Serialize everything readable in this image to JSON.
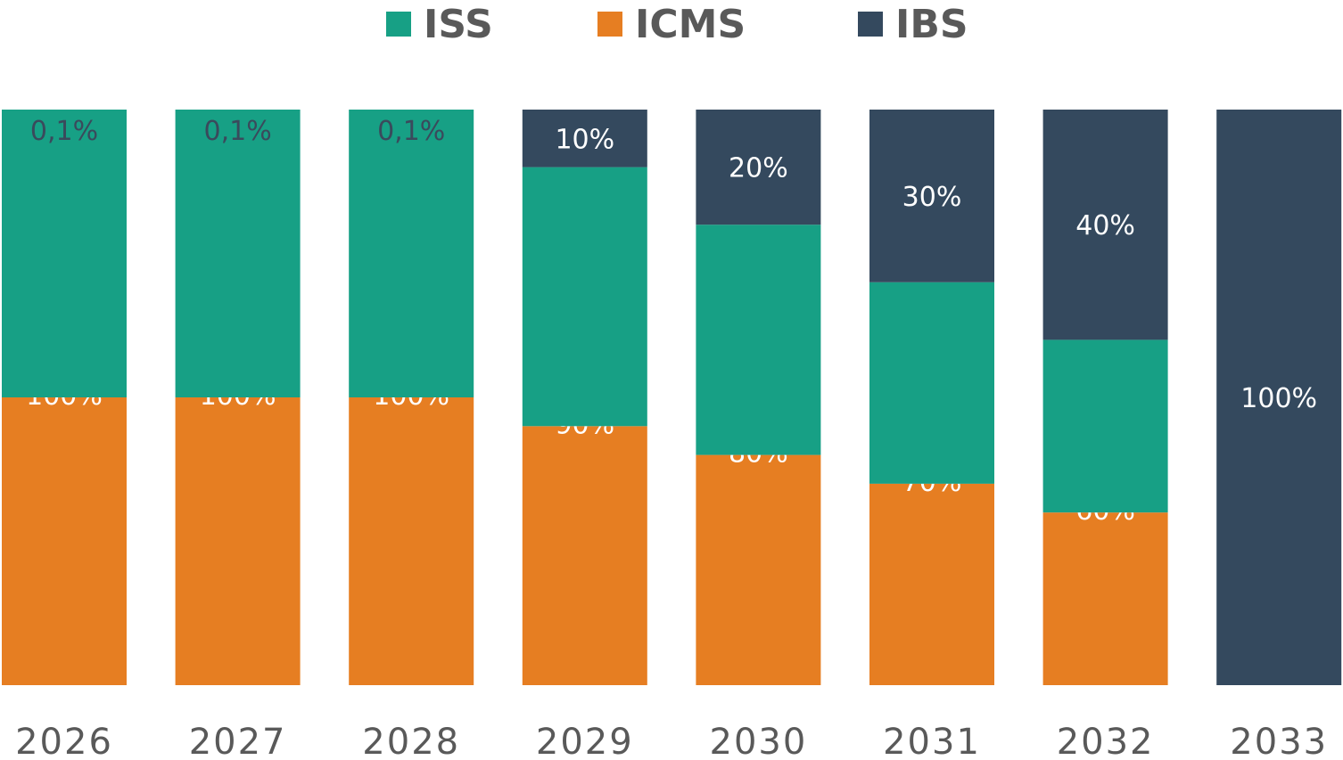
{
  "chart_data": {
    "type": "bar",
    "stacked": true,
    "title": "",
    "xlabel": "",
    "ylabel": "",
    "ylim": [
      0,
      100
    ],
    "grid": false,
    "legend_position": "top-center",
    "categories": [
      "2026",
      "2027",
      "2028",
      "2029",
      "2030",
      "2031",
      "2032",
      "2033"
    ],
    "series": [
      {
        "name": "ICMS",
        "color": "#E67E22",
        "values": [
          50,
          50,
          50,
          45,
          40,
          35,
          30,
          0
        ],
        "labels": [
          "100%",
          "100%",
          "100%",
          "90%",
          "80%",
          "70%",
          "60%",
          ""
        ]
      },
      {
        "name": "ISS",
        "color": "#17A085",
        "values": [
          50,
          50,
          50,
          45,
          40,
          35,
          30,
          0
        ],
        "labels": [
          "0,1%",
          "0,1%",
          "0,1%",
          "",
          "",
          "",
          "",
          ""
        ]
      },
      {
        "name": "IBS",
        "color": "#34495E",
        "values": [
          0,
          0,
          0,
          10,
          20,
          30,
          40,
          100
        ],
        "labels": [
          "",
          "",
          "",
          "10%",
          "20%",
          "30%",
          "40%",
          "100%"
        ]
      }
    ],
    "legend": [
      {
        "name": "ISS",
        "color": "#17A085"
      },
      {
        "name": "ICMS",
        "color": "#E67E22"
      },
      {
        "name": "IBS",
        "color": "#34495E"
      }
    ]
  }
}
